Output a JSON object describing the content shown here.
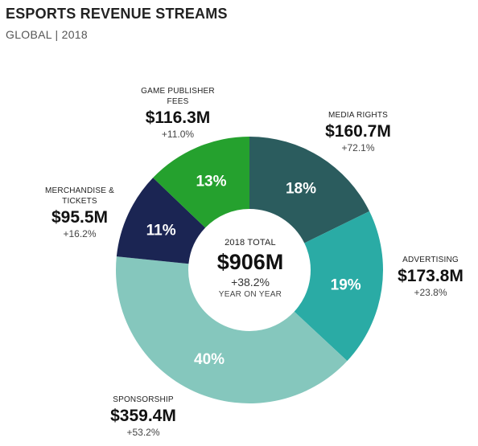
{
  "header": {
    "title": "ESPORTS REVENUE STREAMS",
    "subtitle": "GLOBAL | 2018"
  },
  "center": {
    "label": "2018 TOTAL",
    "total": "$906M",
    "change": "+38.2%",
    "sub": "YEAR ON YEAR"
  },
  "chart_data": {
    "type": "pie",
    "donut": true,
    "title": "ESPORTS REVENUE STREAMS",
    "subtitle": "GLOBAL | 2018",
    "unit": "$M",
    "slices": [
      {
        "name": "MEDIA RIGHTS",
        "value": 160.7,
        "value_label": "$160.7M",
        "percent": 18,
        "percent_label": "18%",
        "change": "+72.1%",
        "color": "#2b5c5e"
      },
      {
        "name": "ADVERTISING",
        "value": 173.8,
        "value_label": "$173.8M",
        "percent": 19,
        "percent_label": "19%",
        "change": "+23.8%",
        "color": "#2aaba5"
      },
      {
        "name": "SPONSORSHIP",
        "value": 359.4,
        "value_label": "$359.4M",
        "percent": 40,
        "percent_label": "40%",
        "change": "+53.2%",
        "color": "#85c7bd"
      },
      {
        "name": "MERCHANDISE & TICKETS",
        "value": 95.5,
        "value_label": "$95.5M",
        "percent": 11,
        "percent_label": "11%",
        "change": "+16.2%",
        "color": "#1b2553"
      },
      {
        "name": "GAME PUBLISHER FEES",
        "value": 116.3,
        "value_label": "$116.3M",
        "percent": 13,
        "percent_label": "13%",
        "change": "+11.0%",
        "color": "#25a12e"
      }
    ],
    "total_label": "$906M",
    "total_change": "+38.2%"
  }
}
